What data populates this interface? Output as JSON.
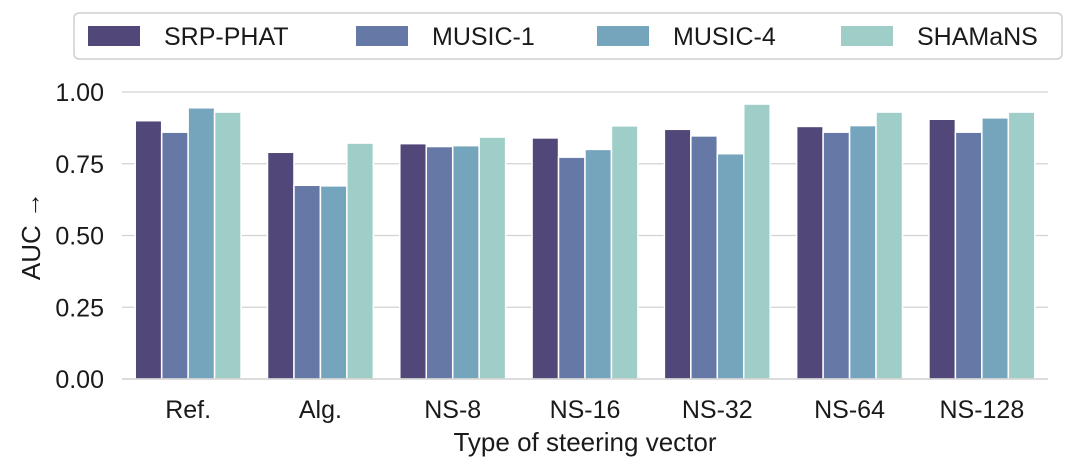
{
  "chart_data": {
    "type": "bar",
    "title": "",
    "xlabel": "Type of steering vector",
    "ylabel": "AUC →",
    "categories": [
      "Ref.",
      "Alg.",
      "NS-8",
      "NS-16",
      "NS-32",
      "NS-64",
      "NS-128"
    ],
    "ylim": [
      0,
      1
    ],
    "yticks": [
      "0.00",
      "0.25",
      "0.50",
      "0.75",
      "1.00"
    ],
    "grid": "horizontal",
    "legend_position": "top",
    "series": [
      {
        "name": "SRP-PHAT",
        "color": "#514779",
        "values": [
          0.9,
          0.79,
          0.82,
          0.84,
          0.87,
          0.88,
          0.905
        ]
      },
      {
        "name": "MUSIC-1",
        "color": "#6578a6",
        "values": [
          0.86,
          0.675,
          0.81,
          0.773,
          0.847,
          0.86,
          0.86
        ]
      },
      {
        "name": "MUSIC-4",
        "color": "#75a5bc",
        "values": [
          0.945,
          0.673,
          0.813,
          0.8,
          0.785,
          0.883,
          0.91
        ]
      },
      {
        "name": "SHAMaNS",
        "color": "#9fcdc8",
        "values": [
          0.93,
          0.822,
          0.843,
          0.882,
          0.958,
          0.93,
          0.93
        ]
      }
    ]
  }
}
